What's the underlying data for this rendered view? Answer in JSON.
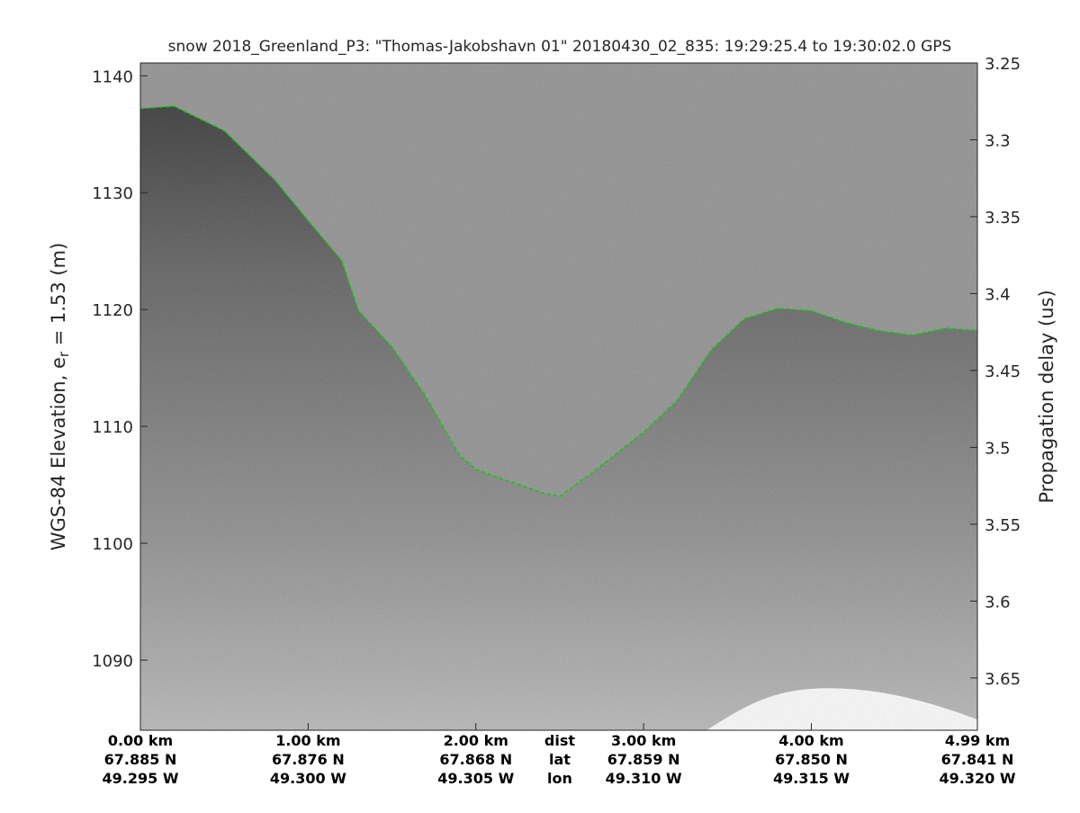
{
  "chart_data": {
    "type": "echogram",
    "title": "snow 2018_Greenland_P3: \"Thomas-Jakobshavn 01\"  20180430_02_835: 19:29:25.4 to 19:30:02.0 GPS",
    "ylabel": {
      "text": "WGS-84 Elevation, e",
      "subscript": "r",
      "suffix": " = 1.53 (m)"
    },
    "y2label": "Propagation delay (us)",
    "xlim": [
      0,
      4.99
    ],
    "ylim": [
      1084,
      1141.1
    ],
    "y2lim": [
      3.684,
      3.25
    ],
    "yticks": [
      1090,
      1100,
      1110,
      1120,
      1130,
      1140
    ],
    "y2ticks": [
      3.25,
      3.3,
      3.35,
      3.4,
      3.45,
      3.5,
      3.55,
      3.6,
      3.65
    ],
    "xticks": [
      {
        "value": 0,
        "label": "0.00 km"
      },
      {
        "value": 1,
        "label": "1.00 km"
      },
      {
        "value": 2,
        "label": "2.00 km"
      },
      {
        "value": 3,
        "label": "3.00 km"
      },
      {
        "value": 4,
        "label": "4.00 km"
      },
      {
        "value": 4.99,
        "label": "4.99 km"
      }
    ],
    "lat_labels": [
      "67.885 N",
      "67.876 N",
      "67.868 N",
      "67.859 N",
      "67.850 N",
      "67.841 N"
    ],
    "lon_labels": [
      "49.295 W",
      "49.300 W",
      "49.305 W",
      "49.310 W",
      "49.315 W",
      "49.320 W"
    ],
    "row_labels": {
      "value": 2.5,
      "labels": [
        "dist",
        "lat",
        "lon"
      ]
    },
    "series": [
      {
        "color": "#00d000",
        "x": [
          0,
          0.2,
          0.5,
          0.8,
          1.0,
          1.2,
          1.3,
          1.5,
          1.7,
          1.9,
          2.0,
          2.2,
          2.4,
          2.5,
          2.7,
          3.0,
          3.2,
          3.4,
          3.6,
          3.8,
          4.0,
          4.2,
          4.4,
          4.6,
          4.8,
          4.99
        ],
        "values": [
          1137.2,
          1137.4,
          1135.3,
          1131.1,
          1127.6,
          1124.2,
          1119.9,
          1116.8,
          1112.6,
          1107.6,
          1106.3,
          1105.3,
          1104.3,
          1104.0,
          1106.1,
          1109.5,
          1112.2,
          1116.5,
          1119.2,
          1120.1,
          1119.9,
          1118.9,
          1118.2,
          1117.8,
          1118.4,
          1118.2
        ]
      }
    ]
  }
}
